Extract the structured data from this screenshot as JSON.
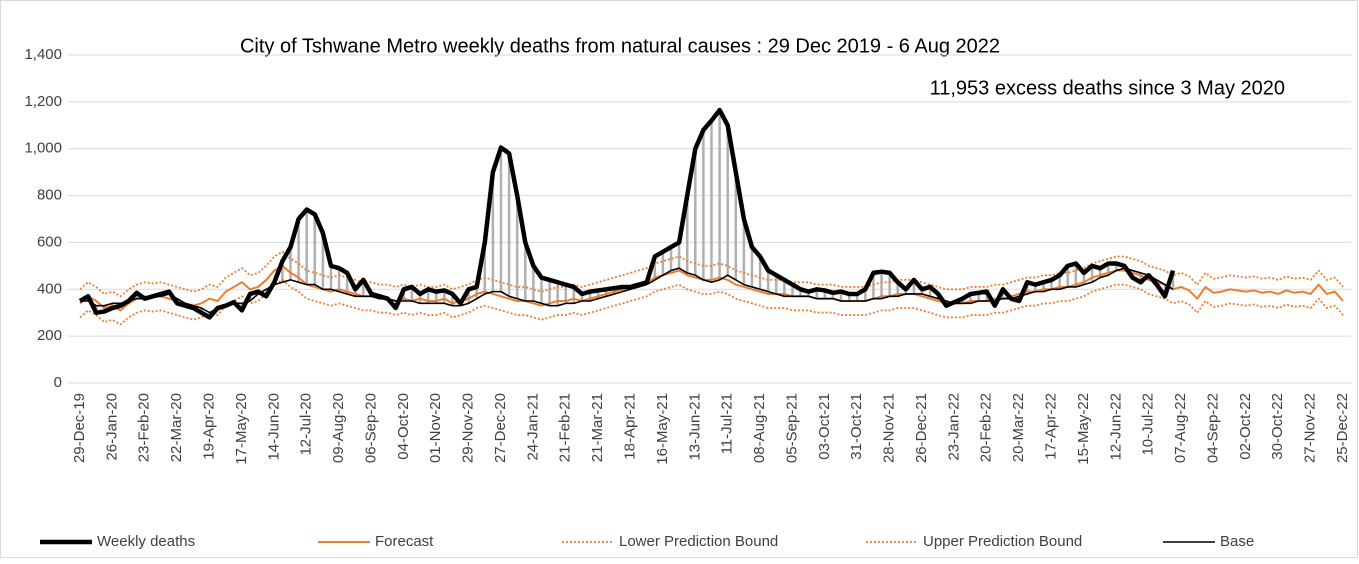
{
  "chart_data": {
    "type": "line",
    "title": "City of Tshwane Metro weekly deaths from natural causes : 29 Dec 2019 - 6 Aug 2022",
    "annotation": "11,953 excess deaths since 3 May 2020",
    "categories": [
      "29-Dec-19",
      null,
      null,
      null,
      "26-Jan-20",
      null,
      null,
      null,
      "23-Feb-20",
      null,
      null,
      null,
      "22-Mar-20",
      null,
      null,
      null,
      "19-Apr-20",
      null,
      null,
      null,
      "17-May-20",
      null,
      null,
      null,
      "14-Jun-20",
      null,
      null,
      null,
      "12-Jul-20",
      null,
      null,
      null,
      "09-Aug-20",
      null,
      null,
      null,
      "06-Sep-20",
      null,
      null,
      null,
      "04-Oct-20",
      null,
      null,
      null,
      "01-Nov-20",
      null,
      null,
      null,
      "29-Nov-20",
      null,
      null,
      null,
      "27-Dec-20",
      null,
      null,
      null,
      "24-Jan-21",
      null,
      null,
      null,
      "21-Feb-21",
      null,
      null,
      null,
      "21-Mar-21",
      null,
      null,
      null,
      "18-Apr-21",
      null,
      null,
      null,
      "16-May-21",
      null,
      null,
      null,
      "13-Jun-21",
      null,
      null,
      null,
      "11-Jul-21",
      null,
      null,
      null,
      "08-Aug-21",
      null,
      null,
      null,
      "05-Sep-21",
      null,
      null,
      null,
      "03-Oct-21",
      null,
      null,
      null,
      "31-Oct-21",
      null,
      null,
      null,
      "28-Nov-21",
      null,
      null,
      null,
      "26-Dec-21",
      null,
      null,
      null,
      "23-Jan-22",
      null,
      null,
      null,
      "20-Feb-22",
      null,
      null,
      null,
      "20-Mar-22",
      null,
      null,
      null,
      "17-Apr-22",
      null,
      null,
      null,
      "15-May-22",
      null,
      null,
      null,
      "12-Jun-22",
      null,
      null,
      null,
      "10-Jul-22",
      null,
      null,
      null,
      "07-Aug-22",
      null,
      null,
      null,
      "04-Sep-22",
      null,
      null,
      null,
      "02-Oct-22",
      null,
      null,
      null,
      "30-Oct-22",
      null,
      null,
      null,
      "27-Nov-22",
      null,
      null,
      null,
      "25-Dec-22"
    ],
    "series": [
      {
        "name": "Weekly deaths",
        "color": "#000000",
        "style": "solid",
        "width": 4.5,
        "values": [
          350,
          370,
          300,
          305,
          320,
          330,
          350,
          385,
          360,
          370,
          380,
          390,
          340,
          330,
          320,
          300,
          280,
          320,
          330,
          345,
          310,
          380,
          390,
          370,
          430,
          520,
          580,
          700,
          740,
          720,
          640,
          500,
          490,
          470,
          400,
          440,
          380,
          370,
          360,
          320,
          400,
          410,
          380,
          400,
          390,
          395,
          380,
          340,
          400,
          410,
          600,
          900,
          1005,
          980,
          800,
          600,
          500,
          450,
          440,
          430,
          420,
          410,
          380,
          390,
          395,
          400,
          405,
          410,
          410,
          420,
          430,
          540,
          560,
          580,
          600,
          800,
          1000,
          1080,
          1120,
          1165,
          1100,
          900,
          700,
          580,
          540,
          480,
          460,
          440,
          420,
          400,
          390,
          400,
          395,
          385,
          390,
          380,
          380,
          400,
          470,
          475,
          470,
          430,
          400,
          440,
          400,
          410,
          380,
          330,
          345,
          360,
          380,
          385,
          390,
          330,
          400,
          360,
          350,
          430,
          420,
          430,
          440,
          460,
          500,
          510,
          470,
          500,
          490,
          510,
          510,
          500,
          450,
          430,
          460,
          420,
          370,
          480,
          null,
          null,
          null,
          null,
          null,
          null,
          null,
          null,
          null,
          null,
          null,
          null,
          null,
          null,
          null,
          null,
          null,
          null,
          null,
          null,
          null
        ]
      },
      {
        "name": "Forecast",
        "color": "#ed7d31",
        "style": "solid",
        "width": 2,
        "values": [
          340,
          370,
          350,
          320,
          330,
          310,
          340,
          360,
          370,
          365,
          370,
          360,
          350,
          340,
          330,
          340,
          360,
          350,
          390,
          410,
          430,
          400,
          410,
          440,
          480,
          500,
          470,
          450,
          420,
          410,
          400,
          390,
          400,
          390,
          380,
          370,
          370,
          360,
          360,
          350,
          360,
          350,
          360,
          350,
          350,
          360,
          340,
          350,
          360,
          380,
          390,
          380,
          370,
          360,
          350,
          350,
          340,
          330,
          340,
          350,
          350,
          360,
          350,
          360,
          370,
          380,
          390,
          400,
          410,
          420,
          430,
          450,
          460,
          470,
          480,
          460,
          450,
          440,
          440,
          450,
          440,
          420,
          410,
          400,
          390,
          380,
          380,
          380,
          370,
          370,
          370,
          360,
          360,
          360,
          350,
          350,
          350,
          350,
          360,
          370,
          370,
          380,
          380,
          380,
          370,
          360,
          350,
          340,
          340,
          340,
          350,
          350,
          350,
          360,
          360,
          370,
          380,
          390,
          390,
          400,
          400,
          410,
          410,
          420,
          430,
          450,
          460,
          470,
          480,
          480,
          470,
          460,
          440,
          430,
          420,
          400,
          410,
          395,
          360,
          410,
          385,
          390,
          400,
          395,
          390,
          395,
          385,
          390,
          380,
          395,
          385,
          390,
          380,
          420,
          380,
          390,
          350
        ]
      },
      {
        "name": "Lower Prediction Bound",
        "color": "#ed7d31",
        "style": "dotted",
        "width": 1.8,
        "values": [
          280,
          310,
          290,
          260,
          270,
          250,
          280,
          300,
          310,
          305,
          310,
          300,
          290,
          280,
          270,
          280,
          300,
          290,
          330,
          350,
          370,
          340,
          350,
          380,
          420,
          440,
          410,
          390,
          360,
          350,
          340,
          330,
          340,
          330,
          320,
          310,
          310,
          300,
          300,
          290,
          300,
          290,
          300,
          290,
          290,
          300,
          280,
          290,
          300,
          320,
          330,
          320,
          310,
          300,
          290,
          290,
          280,
          270,
          280,
          290,
          290,
          300,
          290,
          300,
          310,
          320,
          330,
          340,
          350,
          360,
          370,
          390,
          400,
          410,
          420,
          400,
          390,
          380,
          380,
          390,
          380,
          360,
          350,
          340,
          330,
          320,
          320,
          320,
          310,
          310,
          310,
          300,
          300,
          300,
          290,
          290,
          290,
          290,
          300,
          310,
          310,
          320,
          320,
          320,
          310,
          300,
          290,
          280,
          280,
          280,
          290,
          290,
          290,
          300,
          300,
          310,
          320,
          330,
          330,
          340,
          340,
          350,
          350,
          360,
          370,
          390,
          400,
          410,
          420,
          420,
          410,
          400,
          380,
          370,
          360,
          340,
          350,
          335,
          300,
          350,
          325,
          330,
          340,
          335,
          330,
          335,
          325,
          330,
          320,
          335,
          325,
          330,
          320,
          360,
          320,
          330,
          290
        ]
      },
      {
        "name": "Upper Prediction Bound",
        "color": "#ed7d31",
        "style": "dotted",
        "width": 1.8,
        "values": [
          400,
          430,
          410,
          380,
          390,
          370,
          400,
          420,
          430,
          425,
          430,
          420,
          410,
          400,
          390,
          400,
          420,
          410,
          450,
          470,
          490,
          460,
          470,
          500,
          540,
          560,
          530,
          510,
          480,
          470,
          460,
          450,
          460,
          450,
          440,
          430,
          430,
          420,
          420,
          410,
          420,
          410,
          420,
          410,
          410,
          420,
          400,
          410,
          420,
          440,
          450,
          440,
          430,
          420,
          410,
          410,
          400,
          390,
          400,
          410,
          410,
          420,
          410,
          420,
          430,
          440,
          450,
          460,
          470,
          480,
          490,
          510,
          520,
          530,
          540,
          520,
          510,
          500,
          500,
          510,
          500,
          480,
          470,
          460,
          450,
          440,
          440,
          440,
          430,
          430,
          430,
          420,
          420,
          420,
          410,
          410,
          410,
          410,
          420,
          430,
          430,
          440,
          440,
          440,
          430,
          420,
          410,
          400,
          400,
          400,
          410,
          410,
          410,
          420,
          420,
          430,
          440,
          450,
          450,
          460,
          460,
          470,
          470,
          480,
          490,
          510,
          520,
          530,
          540,
          540,
          530,
          520,
          500,
          490,
          480,
          460,
          470,
          455,
          420,
          470,
          445,
          450,
          460,
          455,
          450,
          455,
          445,
          450,
          440,
          455,
          445,
          450,
          440,
          480,
          440,
          450,
          410
        ]
      },
      {
        "name": "Base",
        "color": "#000000",
        "style": "solid",
        "width": 1.6,
        "values": [
          350,
          350,
          330,
          330,
          340,
          340,
          350,
          360,
          360,
          370,
          370,
          380,
          360,
          340,
          330,
          320,
          300,
          320,
          330,
          340,
          340,
          350,
          380,
          400,
          420,
          430,
          440,
          430,
          420,
          420,
          400,
          400,
          390,
          380,
          370,
          370,
          370,
          360,
          360,
          350,
          350,
          350,
          340,
          340,
          340,
          340,
          330,
          330,
          340,
          360,
          380,
          390,
          390,
          370,
          360,
          350,
          350,
          340,
          330,
          330,
          340,
          340,
          350,
          350,
          360,
          370,
          380,
          390,
          400,
          410,
          420,
          440,
          460,
          480,
          490,
          470,
          460,
          440,
          430,
          440,
          460,
          440,
          420,
          410,
          400,
          390,
          380,
          370,
          370,
          370,
          370,
          360,
          360,
          360,
          350,
          350,
          350,
          350,
          360,
          360,
          370,
          370,
          380,
          380,
          380,
          370,
          360,
          350,
          340,
          340,
          340,
          350,
          350,
          350,
          360,
          360,
          370,
          380,
          390,
          390,
          400,
          400,
          410,
          410,
          420,
          430,
          450,
          460,
          480,
          490,
          480,
          470,
          460,
          440,
          420,
          400,
          null,
          null,
          null,
          null,
          null,
          null,
          null,
          null,
          null,
          null,
          null,
          null,
          null,
          null,
          null,
          null,
          null,
          null,
          null,
          null,
          null
        ]
      }
    ],
    "ylim": [
      0,
      1400
    ],
    "yticks": [
      0,
      200,
      400,
      600,
      800,
      {
        "value": 1000,
        "label": "1,000"
      },
      {
        "value": 1200,
        "label": "1,200"
      },
      {
        "value": 1400,
        "label": "1,400"
      }
    ],
    "grid": true,
    "legend": "bottom"
  }
}
